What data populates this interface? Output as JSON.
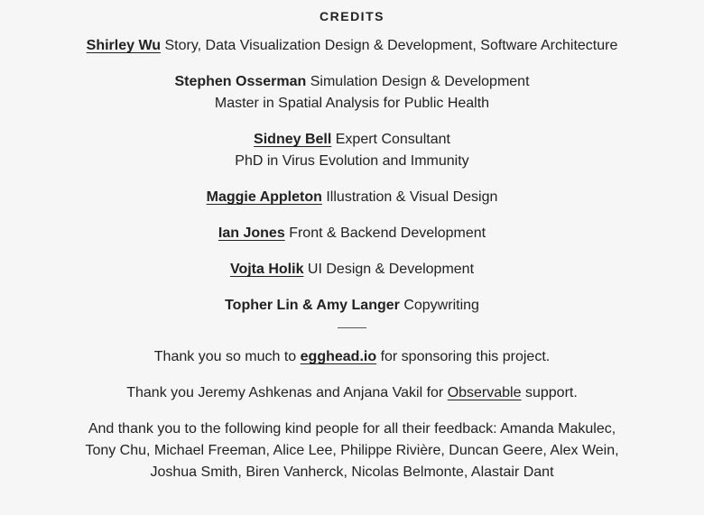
{
  "heading": "CREDITS",
  "credits": [
    {
      "name": "Shirley Wu",
      "role": "Story, Data Visualization Design & Development, Software Architecture",
      "subtitle": ""
    },
    {
      "name": "Stephen Osserman",
      "role": "Simulation Design & Development",
      "subtitle": "Master in Spatial Analysis for Public Health"
    },
    {
      "name": "Sidney Bell",
      "role": "Expert Consultant",
      "subtitle": "PhD in Virus Evolution and Immunity"
    },
    {
      "name": "Maggie Appleton",
      "role": "Illustration & Visual Design",
      "subtitle": ""
    },
    {
      "name": "Ian Jones",
      "role": "Front & Backend Development",
      "subtitle": ""
    },
    {
      "name": "Vojta Holik",
      "role": "UI Design & Development",
      "subtitle": ""
    },
    {
      "name": "Topher Lin & Amy Langer",
      "role": "Copywriting",
      "subtitle": ""
    }
  ],
  "sponsor": {
    "prefix": "Thank you so much to",
    "link": "egghead.io",
    "suffix": "for sponsoring this project."
  },
  "observable": {
    "prefix": "Thank you Jeremy Ashkenas and Anjana Vakil for",
    "link": "Observable",
    "suffix": "support."
  },
  "feedback": "And thank you to the following kind people for all their feedback: Amanda Makulec, Tony Chu, Michael Freeman, Alice Lee, Philippe Rivière, Duncan Geere, Alex Wein, Joshua Smith, Biren Vanherck, Nicolas Belmonte, Alastair Dant"
}
